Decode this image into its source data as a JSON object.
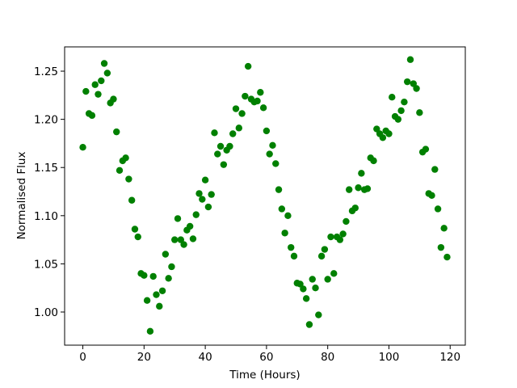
{
  "chart_data": {
    "type": "scatter",
    "x_label": "Time (Hours)",
    "y_label": "Normalised Flux",
    "x": [
      0,
      1,
      2,
      3,
      4,
      5,
      6,
      7,
      8,
      9,
      10,
      11,
      12,
      13,
      14,
      15,
      16,
      17,
      18,
      19,
      20,
      21,
      22,
      23,
      24,
      25,
      26,
      27,
      28,
      29,
      30,
      31,
      32,
      33,
      34,
      35,
      36,
      37,
      38,
      39,
      40,
      41,
      42,
      43,
      44,
      45,
      46,
      47,
      48,
      49,
      50,
      51,
      52,
      53,
      54,
      55,
      56,
      57,
      58,
      59,
      60,
      61,
      62,
      63,
      64,
      65,
      66,
      67,
      68,
      69,
      70,
      71,
      72,
      73,
      74,
      75,
      76,
      77,
      78,
      79,
      80,
      81,
      82,
      83,
      84,
      85,
      86,
      87,
      88,
      89,
      90,
      91,
      92,
      93,
      94,
      95,
      96,
      97,
      98,
      99,
      100,
      101,
      102,
      103,
      104,
      105,
      106,
      107,
      108,
      109,
      110,
      111,
      112,
      113,
      114,
      115,
      116,
      117,
      118,
      119
    ],
    "values": [
      1.171,
      1.229,
      1.206,
      1.204,
      1.236,
      1.226,
      1.24,
      1.258,
      1.248,
      1.217,
      1.221,
      1.187,
      1.147,
      1.157,
      1.16,
      1.138,
      1.116,
      1.086,
      1.078,
      1.04,
      1.038,
      1.012,
      0.98,
      1.037,
      1.018,
      1.006,
      1.022,
      1.06,
      1.035,
      1.047,
      1.075,
      1.097,
      1.075,
      1.07,
      1.085,
      1.089,
      1.076,
      1.101,
      1.123,
      1.117,
      1.137,
      1.109,
      1.122,
      1.186,
      1.164,
      1.172,
      1.153,
      1.168,
      1.172,
      1.185,
      1.211,
      1.191,
      1.206,
      1.224,
      1.255,
      1.221,
      1.218,
      1.219,
      1.228,
      1.212,
      1.188,
      1.164,
      1.173,
      1.154,
      1.127,
      1.107,
      1.082,
      1.1,
      1.067,
      1.058,
      1.03,
      1.029,
      1.024,
      1.014,
      0.987,
      1.034,
      1.025,
      0.997,
      1.058,
      1.065,
      1.034,
      1.078,
      1.04,
      1.078,
      1.075,
      1.081,
      1.094,
      1.127,
      1.105,
      1.108,
      1.129,
      1.144,
      1.127,
      1.128,
      1.16,
      1.157,
      1.19,
      1.185,
      1.181,
      1.188,
      1.185,
      1.223,
      1.203,
      1.2,
      1.209,
      1.218,
      1.239,
      1.262,
      1.237,
      1.232,
      1.207,
      1.166,
      1.169,
      1.123,
      1.121,
      1.148,
      1.107,
      1.067,
      1.087,
      1.057
    ],
    "color": "#008000",
    "xlim": [
      -5.95,
      124.95
    ],
    "ylim": [
      0.9656,
      1.2752
    ],
    "xticks": [
      0,
      20,
      40,
      60,
      80,
      100,
      120
    ],
    "yticks": [
      {
        "value": 1.0,
        "label": "1.00"
      },
      {
        "value": 1.05,
        "label": "1.05"
      },
      {
        "value": 1.1,
        "label": "1.10"
      },
      {
        "value": 1.15,
        "label": "1.15"
      },
      {
        "value": 1.2,
        "label": "1.20"
      },
      {
        "value": 1.25,
        "label": "1.25"
      }
    ],
    "grid": false
  }
}
